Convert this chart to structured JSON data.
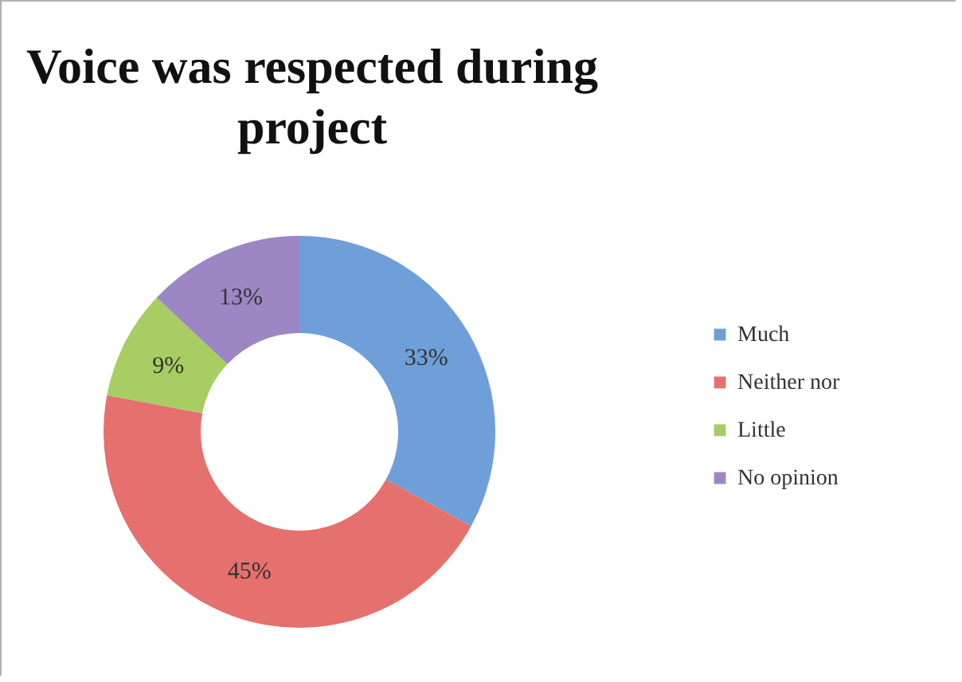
{
  "chart_data": {
    "type": "donut",
    "title": "Voice was respected during project",
    "categories": [
      "Much",
      "Neither nor",
      "Little",
      "No opinion"
    ],
    "values": [
      33,
      45,
      9,
      13
    ],
    "colors": [
      "#6f9fd8",
      "#e5706d",
      "#a8cd63",
      "#9c87c4"
    ],
    "value_labels": [
      "33%",
      "45%",
      "9%",
      "13%"
    ],
    "legend": "right"
  }
}
